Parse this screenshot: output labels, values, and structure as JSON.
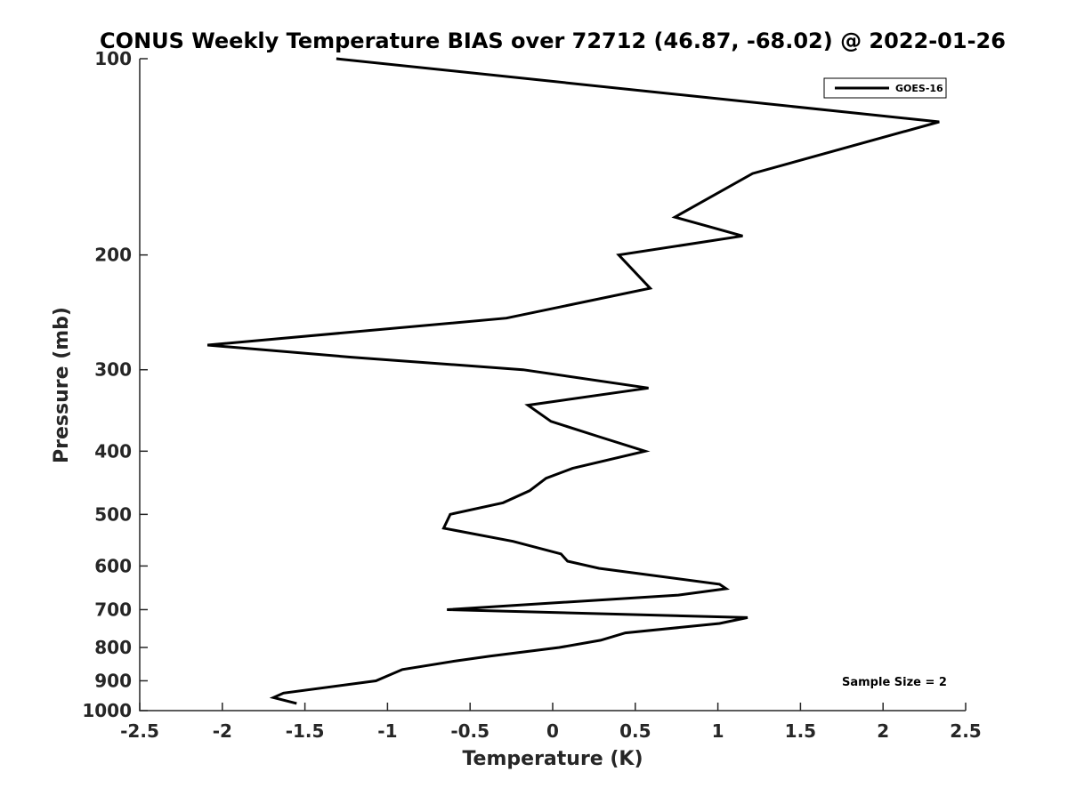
{
  "chart_data": {
    "type": "line",
    "title": "CONUS Weekly Temperature BIAS over 72712 (46.87, -68.02) @ 2022-01-26",
    "xlabel": "Temperature (K)",
    "ylabel": "Pressure (mb)",
    "xlim": [
      -2.5,
      2.5
    ],
    "ylim": [
      100,
      1000
    ],
    "y_scale": "log",
    "y_reversed": true,
    "grid": false,
    "legend_position": "top-right",
    "xticks": [
      -2.5,
      -2,
      -1.5,
      -1,
      -0.5,
      0,
      0.5,
      1,
      1.5,
      2,
      2.5
    ],
    "xtick_labels": [
      "-2.5",
      "-2",
      "-1.5",
      "-1",
      "-0.5",
      "0",
      "0.5",
      "1",
      "1.5",
      "2",
      "2.5"
    ],
    "yticks": [
      100,
      200,
      300,
      400,
      500,
      600,
      700,
      800,
      900,
      1000
    ],
    "ytick_labels": [
      "100",
      "200",
      "300",
      "400",
      "500",
      "600",
      "700",
      "800",
      "900",
      "1000"
    ],
    "series": [
      {
        "name": "GOES-16",
        "color": "#000000",
        "points": [
          {
            "x": -1.31,
            "y": 100
          },
          {
            "x": 2.34,
            "y": 125
          },
          {
            "x": 1.21,
            "y": 150
          },
          {
            "x": 0.74,
            "y": 175
          },
          {
            "x": 1.15,
            "y": 187
          },
          {
            "x": 0.4,
            "y": 200
          },
          {
            "x": 0.59,
            "y": 225
          },
          {
            "x": -0.28,
            "y": 250
          },
          {
            "x": -2.09,
            "y": 275
          },
          {
            "x": -1.22,
            "y": 287
          },
          {
            "x": -0.18,
            "y": 300
          },
          {
            "x": 0.58,
            "y": 320
          },
          {
            "x": -0.15,
            "y": 340
          },
          {
            "x": -0.01,
            "y": 360
          },
          {
            "x": 0.28,
            "y": 380
          },
          {
            "x": 0.56,
            "y": 400
          },
          {
            "x": 0.12,
            "y": 425
          },
          {
            "x": -0.04,
            "y": 440
          },
          {
            "x": -0.14,
            "y": 460
          },
          {
            "x": -0.3,
            "y": 480
          },
          {
            "x": -0.62,
            "y": 500
          },
          {
            "x": -0.66,
            "y": 525
          },
          {
            "x": -0.24,
            "y": 550
          },
          {
            "x": 0.05,
            "y": 575
          },
          {
            "x": 0.09,
            "y": 590
          },
          {
            "x": 0.28,
            "y": 605
          },
          {
            "x": 1.01,
            "y": 640
          },
          {
            "x": 1.05,
            "y": 650
          },
          {
            "x": 0.76,
            "y": 665
          },
          {
            "x": -0.64,
            "y": 700
          },
          {
            "x": 1.18,
            "y": 720
          },
          {
            "x": 1.01,
            "y": 735
          },
          {
            "x": 0.44,
            "y": 760
          },
          {
            "x": 0.29,
            "y": 780
          },
          {
            "x": 0.04,
            "y": 800
          },
          {
            "x": -0.38,
            "y": 825
          },
          {
            "x": -0.6,
            "y": 840
          },
          {
            "x": -0.91,
            "y": 865
          },
          {
            "x": -1.07,
            "y": 900
          },
          {
            "x": -1.63,
            "y": 940
          },
          {
            "x": -1.69,
            "y": 955
          },
          {
            "x": -1.55,
            "y": 975
          }
        ]
      }
    ],
    "annotations": [
      {
        "text": "Sample Size = 2",
        "position": "bottom-right"
      }
    ]
  }
}
